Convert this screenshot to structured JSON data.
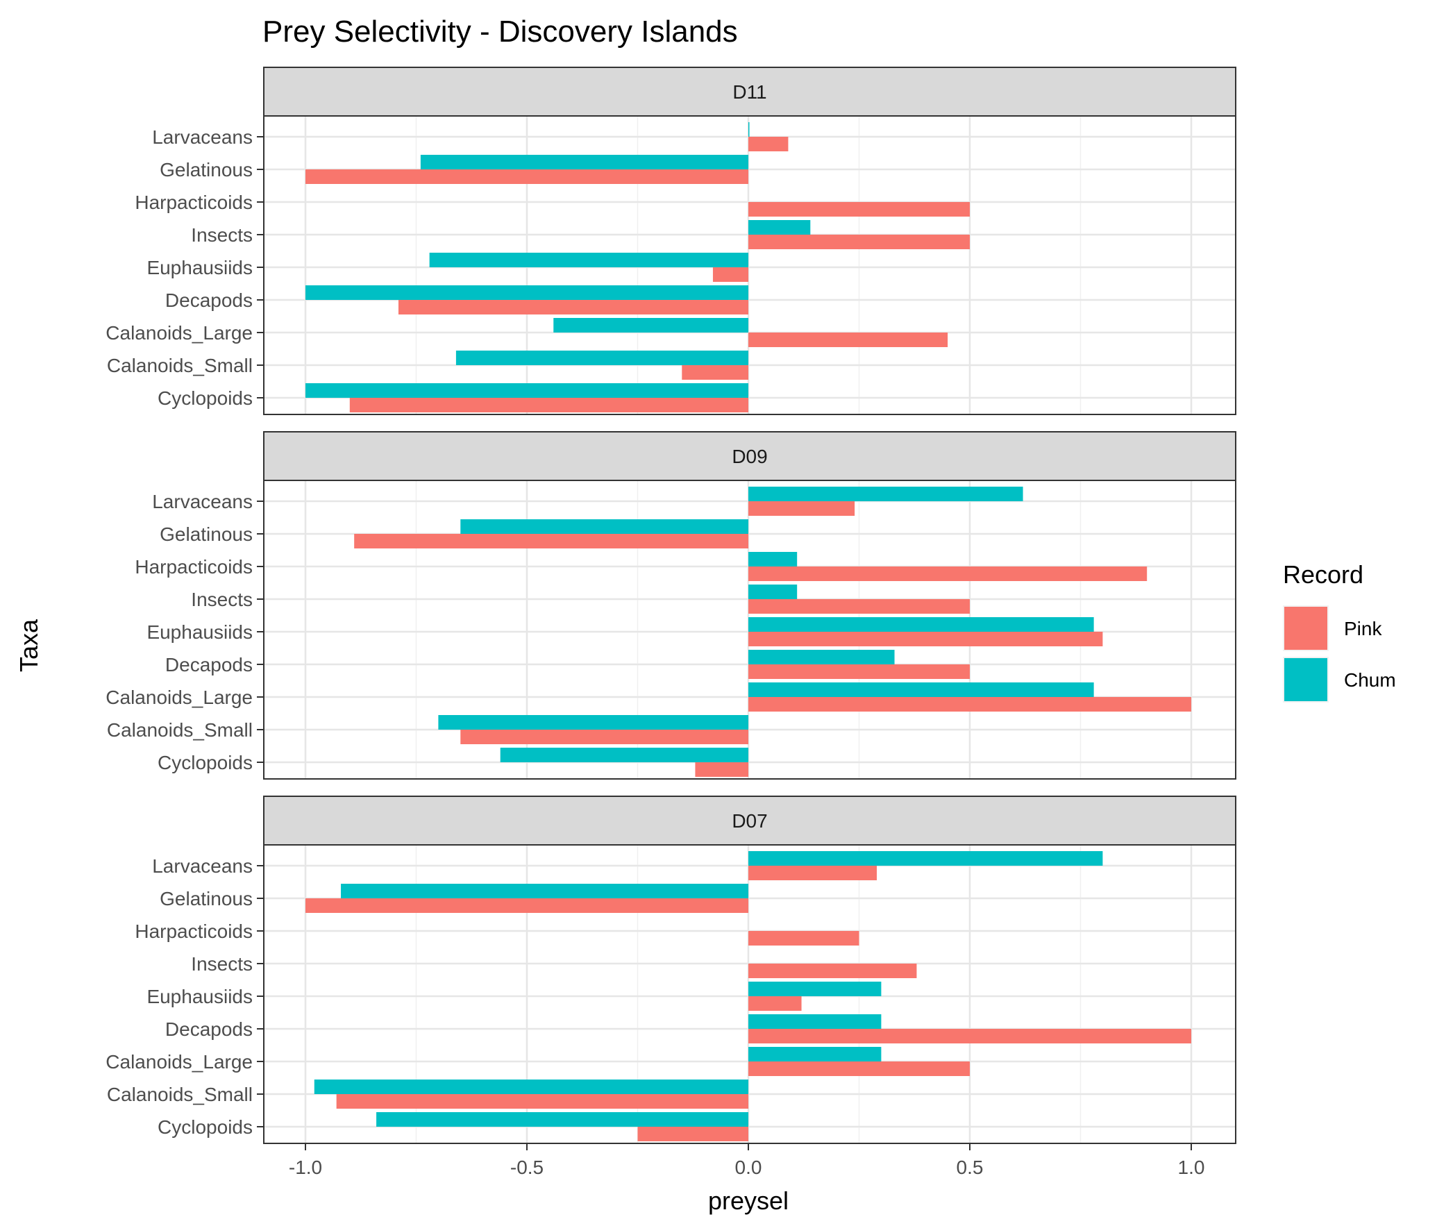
{
  "chart_data": {
    "type": "bar",
    "orientation": "horizontal",
    "title": "Prey Selectivity - Discovery Islands",
    "xlabel": "preysel",
    "ylabel": "Taxa",
    "xlim": [
      -1.1,
      1.1
    ],
    "x_ticks": [
      -1.0,
      -0.5,
      0.0,
      0.5,
      1.0
    ],
    "x_tick_labels": [
      "-1.0",
      "-0.5",
      "0.0",
      "0.5",
      "1.0"
    ],
    "categories": [
      "Larvaceans",
      "Gelatinous",
      "Harpacticoids",
      "Insects",
      "Euphausiids",
      "Decapods",
      "Calanoids_Large",
      "Calanoids_Small",
      "Cyclopoids"
    ],
    "grid": true,
    "legend": {
      "title": "Record",
      "position": "right",
      "entries": [
        {
          "name": "Pink",
          "color": "#F8766D"
        },
        {
          "name": "Chum",
          "color": "#00BFC4"
        }
      ]
    },
    "panels": [
      {
        "name": "D11",
        "series": [
          {
            "name": "Pink",
            "values": [
              0.09,
              -1.0,
              0.5,
              0.5,
              -0.08,
              -0.79,
              0.45,
              -0.15,
              -0.9
            ]
          },
          {
            "name": "Chum",
            "values": [
              0.0,
              -0.74,
              null,
              0.14,
              -0.72,
              -1.0,
              -0.44,
              -0.66,
              -1.0
            ]
          }
        ]
      },
      {
        "name": "D09",
        "series": [
          {
            "name": "Pink",
            "values": [
              0.24,
              -0.89,
              0.9,
              0.5,
              0.8,
              0.5,
              1.0,
              -0.65,
              -0.12
            ]
          },
          {
            "name": "Chum",
            "values": [
              0.62,
              -0.65,
              0.11,
              0.11,
              0.78,
              0.33,
              0.78,
              -0.7,
              -0.56
            ]
          }
        ]
      },
      {
        "name": "D07",
        "series": [
          {
            "name": "Pink",
            "values": [
              0.29,
              -1.0,
              0.25,
              0.38,
              0.12,
              1.0,
              0.5,
              -0.93,
              -0.25
            ]
          },
          {
            "name": "Chum",
            "values": [
              0.8,
              -0.92,
              null,
              null,
              0.3,
              0.3,
              0.3,
              -0.98,
              -0.84
            ]
          }
        ]
      }
    ]
  }
}
